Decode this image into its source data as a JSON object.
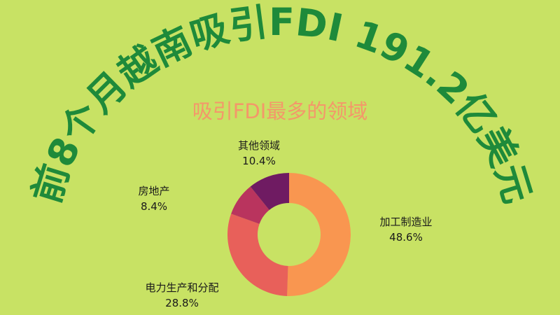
{
  "title": "前8个月越南吸引FDI 191.2亿美元",
  "subtitle": "吸引FDI最多的领域",
  "colors": {
    "background": "#c8e264",
    "title": "#1e8a3a",
    "subtitle": "#f4976a"
  },
  "chart_data": {
    "type": "pie",
    "donut": true,
    "slices": [
      {
        "label": "加工制造业",
        "value": 48.6,
        "value_label": "48.6%",
        "color": "#f99650"
      },
      {
        "label": "电力生产和分配",
        "value": 28.8,
        "value_label": "28.8%",
        "color": "#e8605a"
      },
      {
        "label": "房地产",
        "value": 8.4,
        "value_label": "8.4%",
        "color": "#b9345e"
      },
      {
        "label": "其他领域",
        "value": 10.4,
        "value_label": "10.4%",
        "color": "#6f1b62"
      }
    ]
  }
}
